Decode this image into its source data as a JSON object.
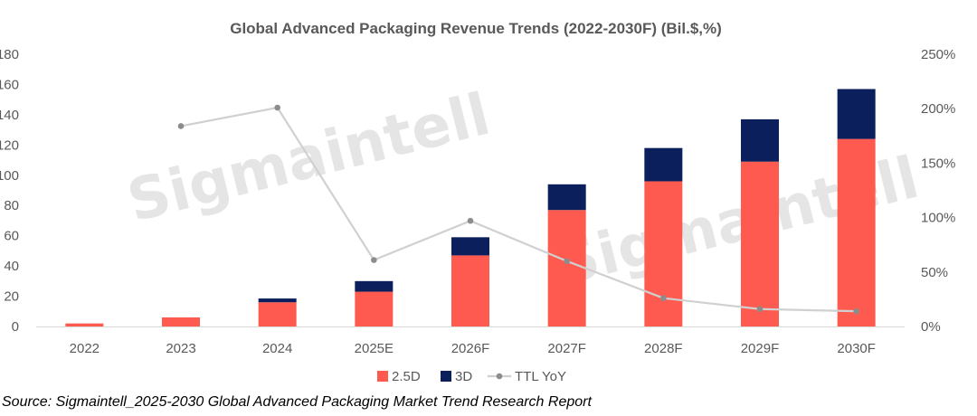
{
  "chart_data": {
    "type": "bar",
    "title": "Global Advanced Packaging Revenue Trends (2022-2030F) (Bil.$,%)",
    "categories": [
      "2022",
      "2023",
      "2024",
      "2025E",
      "2026F",
      "2027F",
      "2028F",
      "2029F",
      "2030F"
    ],
    "series": [
      {
        "name": "2.5D",
        "kind": "bar",
        "stack": "revenue",
        "axis": "left",
        "color": "#ff5a4f",
        "values": [
          2,
          6,
          16,
          23,
          47,
          77,
          96,
          109,
          124
        ]
      },
      {
        "name": "3D",
        "kind": "bar",
        "stack": "revenue",
        "axis": "left",
        "color": "#0b1f5c",
        "values": [
          0,
          0,
          2.5,
          7,
          12,
          17,
          22,
          28,
          33
        ]
      },
      {
        "name": "TTL YoY",
        "kind": "line",
        "axis": "right",
        "color": "#d0d0d0",
        "unit": "%",
        "values": [
          null,
          184,
          201,
          61,
          97,
          60,
          26,
          16,
          14
        ]
      }
    ],
    "y_left": {
      "ylim": [
        0,
        180
      ],
      "ticks": [
        "0",
        "20",
        "40",
        "60",
        "80",
        "100",
        "120",
        "140",
        "160",
        "180"
      ]
    },
    "y_right": {
      "ylim": [
        0,
        250
      ],
      "ticks": [
        "0%",
        "50%",
        "100%",
        "150%",
        "200%",
        "250%"
      ]
    },
    "grid": false,
    "legend": "bottom-center",
    "watermark": "Sigmaintell"
  },
  "source": "Source: Sigmaintell_2025-2030 Global Advanced Packaging Market Trend Research Report"
}
